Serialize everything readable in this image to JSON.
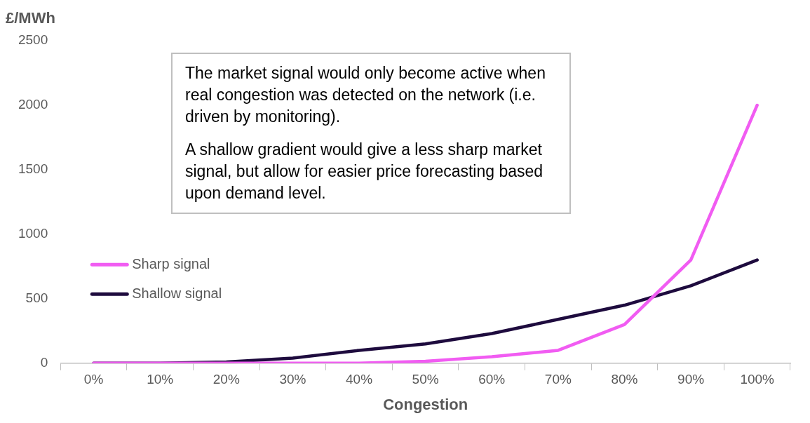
{
  "chart_data": {
    "type": "line",
    "ylabel": "£/MWh",
    "xlabel": "Congestion",
    "categories": [
      "0%",
      "10%",
      "20%",
      "30%",
      "40%",
      "50%",
      "60%",
      "70%",
      "80%",
      "90%",
      "100%"
    ],
    "series": [
      {
        "name": "Sharp signal",
        "color": "#f15cf2",
        "values": [
          0,
          0,
          0,
          0,
          0,
          15,
          50,
          100,
          300,
          800,
          2000
        ]
      },
      {
        "name": "Shallow signal",
        "color": "#1e0b3e",
        "values": [
          0,
          0,
          10,
          40,
          100,
          150,
          230,
          340,
          450,
          600,
          800
        ]
      }
    ],
    "ylim": [
      0,
      2500
    ],
    "yticks": [
      0,
      500,
      1000,
      1500,
      2000,
      2500
    ],
    "grid": false,
    "legend": "center left",
    "marker": "none",
    "line_style": "solid",
    "annotations": [
      "The market signal would only become active when real congestion was detected on the network (i.e. driven by monitoring).",
      "A shallow gradient would give a less sharp market signal, but allow for easier price forecasting based upon demand level."
    ]
  }
}
